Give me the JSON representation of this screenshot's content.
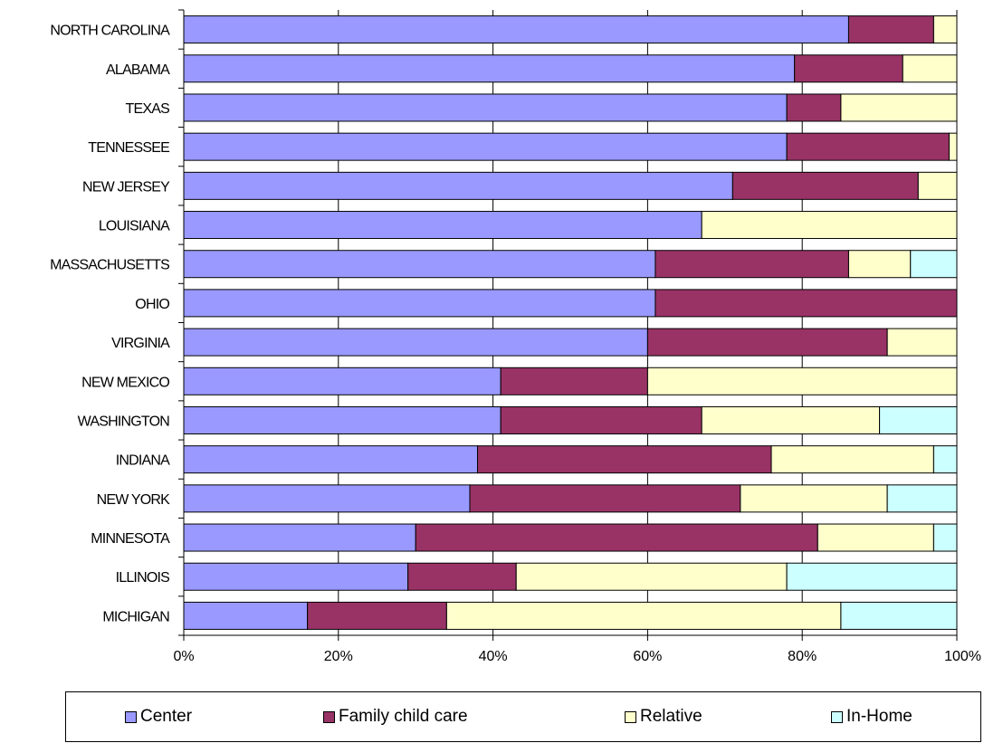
{
  "chart_data": {
    "type": "bar",
    "orientation": "horizontal",
    "stacked": "percent",
    "categories": [
      "NORTH CAROLINA",
      "ALABAMA",
      "TEXAS",
      "TENNESSEE",
      "NEW JERSEY",
      "LOUISIANA",
      "MASSACHUSETTS",
      "OHIO",
      "VIRGINIA",
      "NEW MEXICO",
      "WASHINGTON",
      "INDIANA",
      "NEW YORK",
      "MINNESOTA",
      "ILLINOIS",
      "MICHIGAN"
    ],
    "series": [
      {
        "name": "Center",
        "color": "#9999ff",
        "values": [
          86,
          79,
          78,
          78,
          71,
          67,
          61,
          61,
          60,
          41,
          41,
          38,
          37,
          30,
          29,
          16
        ]
      },
      {
        "name": "Family child care",
        "color": "#993366",
        "values": [
          11,
          14,
          7,
          21,
          24,
          0,
          25,
          39,
          31,
          19,
          26,
          38,
          35,
          52,
          14,
          18
        ]
      },
      {
        "name": "Relative",
        "color": "#ffffcc",
        "values": [
          3,
          7,
          15,
          1,
          5,
          33,
          8,
          0,
          9,
          40,
          23,
          21,
          19,
          15,
          35,
          51
        ]
      },
      {
        "name": "In-Home",
        "color": "#ccffff",
        "values": [
          0,
          0,
          0,
          0,
          0,
          0,
          6,
          0,
          0,
          0,
          10,
          3,
          9,
          3,
          22,
          15
        ]
      }
    ],
    "xlim": [
      0,
      100
    ],
    "x_ticks": [
      "0%",
      "20%",
      "40%",
      "60%",
      "80%",
      "100%"
    ],
    "grid": "vertical",
    "legend": "bottom"
  }
}
